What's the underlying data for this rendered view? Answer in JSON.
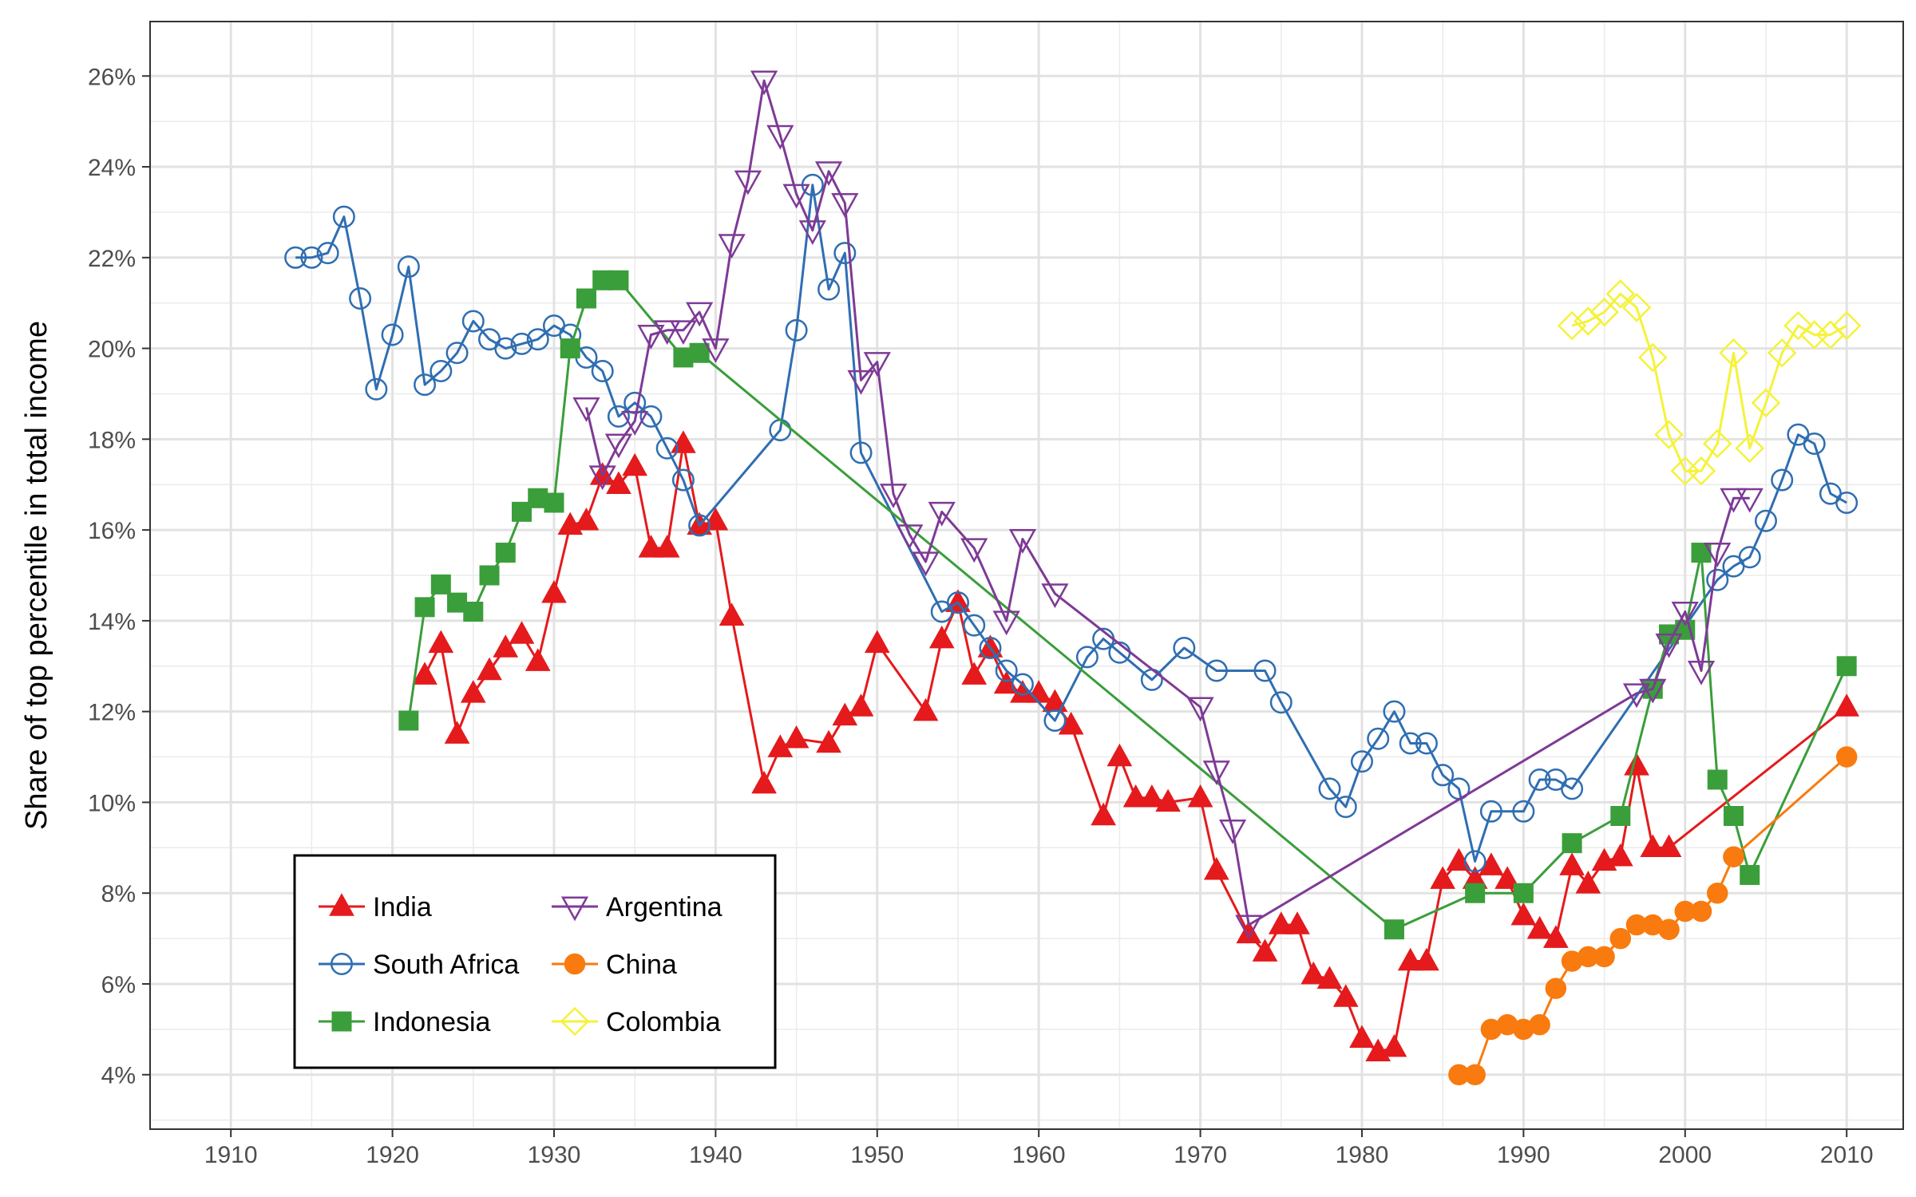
{
  "chart_data": {
    "type": "line",
    "title": "",
    "xlabel": "",
    "ylabel": "Share of top percentile in total income",
    "xlim": [
      1905,
      2013.5
    ],
    "ylim": [
      2.8,
      27.2
    ],
    "x_ticks": [
      1910,
      1920,
      1930,
      1940,
      1950,
      1960,
      1970,
      1980,
      1990,
      2000,
      2010
    ],
    "x_tick_labels": [
      "1910",
      "1920",
      "1930",
      "1940",
      "1950",
      "1960",
      "1970",
      "1980",
      "1990",
      "2000",
      "2010"
    ],
    "y_ticks": [
      4,
      6,
      8,
      10,
      12,
      14,
      16,
      18,
      20,
      22,
      24,
      26
    ],
    "y_tick_labels": [
      "4%",
      "6%",
      "8%",
      "10%",
      "12%",
      "14%",
      "16%",
      "18%",
      "20%",
      "22%",
      "24%",
      "26%"
    ],
    "grid": true,
    "legend_position": "bottom-left",
    "series": [
      {
        "name": "India",
        "color": "#E41A1C",
        "marker": "triangle-up-filled",
        "x": [
          1922,
          1923,
          1924,
          1925,
          1926,
          1927,
          1928,
          1929,
          1930,
          1931,
          1932,
          1933,
          1934,
          1935,
          1936,
          1937,
          1938,
          1939,
          1940,
          1941,
          1943,
          1944,
          1945,
          1947,
          1948,
          1949,
          1950,
          1953,
          1954,
          1955,
          1956,
          1957,
          1958,
          1959,
          1960,
          1961,
          1962,
          1964,
          1965,
          1966,
          1967,
          1968,
          1970,
          1971,
          1973,
          1974,
          1975,
          1976,
          1977,
          1978,
          1979,
          1980,
          1981,
          1982,
          1983,
          1984,
          1985,
          1986,
          1987,
          1988,
          1989,
          1990,
          1991,
          1992,
          1993,
          1994,
          1995,
          1996,
          1997,
          1998,
          1999,
          2010
        ],
        "values": [
          12.8,
          13.5,
          11.5,
          12.4,
          12.9,
          13.4,
          13.7,
          13.1,
          14.6,
          16.1,
          16.2,
          17.2,
          17.0,
          17.4,
          15.6,
          15.6,
          17.9,
          16.1,
          16.2,
          14.1,
          10.4,
          11.2,
          11.4,
          11.3,
          11.9,
          12.1,
          13.5,
          12.0,
          13.6,
          14.4,
          12.8,
          13.4,
          12.6,
          12.4,
          12.4,
          12.2,
          11.7,
          9.7,
          11.0,
          10.1,
          10.1,
          10.0,
          10.1,
          8.5,
          7.1,
          6.7,
          7.3,
          7.3,
          6.2,
          6.1,
          5.7,
          4.8,
          4.5,
          4.6,
          6.5,
          6.5,
          8.3,
          8.7,
          8.3,
          8.6,
          8.3,
          7.5,
          7.2,
          7.0,
          8.6,
          8.2,
          8.7,
          8.8,
          10.8,
          9.0,
          9.0,
          12.1
        ]
      },
      {
        "name": "South Africa",
        "color": "#2F6EB2",
        "marker": "circle-open",
        "x": [
          1914,
          1915,
          1916,
          1917,
          1918,
          1919,
          1920,
          1921,
          1922,
          1923,
          1924,
          1925,
          1926,
          1927,
          1928,
          1929,
          1930,
          1931,
          1932,
          1933,
          1934,
          1935,
          1936,
          1937,
          1938,
          1939,
          1944,
          1945,
          1946,
          1947,
          1948,
          1949,
          1954,
          1955,
          1956,
          1957,
          1958,
          1959,
          1961,
          1963,
          1964,
          1965,
          1967,
          1969,
          1971,
          1974,
          1975,
          1978,
          1979,
          1980,
          1981,
          1982,
          1983,
          1984,
          1985,
          1986,
          1987,
          1988,
          1990,
          1991,
          1992,
          1993,
          2002,
          2003,
          2004,
          2005,
          2006,
          2007,
          2008,
          2009,
          2010
        ],
        "values": [
          22.0,
          22.0,
          22.1,
          22.9,
          21.1,
          19.1,
          20.3,
          21.8,
          19.2,
          19.5,
          19.9,
          20.6,
          20.2,
          20.0,
          20.1,
          20.2,
          20.5,
          20.3,
          19.8,
          19.5,
          18.5,
          18.8,
          18.5,
          17.8,
          17.1,
          16.1,
          18.2,
          20.4,
          23.6,
          21.3,
          22.1,
          17.7,
          14.2,
          14.4,
          13.9,
          13.4,
          12.9,
          12.6,
          11.8,
          13.2,
          13.6,
          13.3,
          12.7,
          13.4,
          12.9,
          12.9,
          12.2,
          10.3,
          9.9,
          10.9,
          11.4,
          12.0,
          11.3,
          11.3,
          10.6,
          10.3,
          8.7,
          9.8,
          9.8,
          10.5,
          10.5,
          10.3,
          14.9,
          15.2,
          15.4,
          16.2,
          17.1,
          18.1,
          17.9,
          16.8,
          16.6
        ]
      },
      {
        "name": "Indonesia",
        "color": "#3A9E3A",
        "marker": "square-filled",
        "x": [
          1921,
          1922,
          1923,
          1924,
          1925,
          1926,
          1927,
          1928,
          1929,
          1930,
          1931,
          1932,
          1933,
          1934,
          1938,
          1939,
          1982,
          1987,
          1990,
          1993,
          1996,
          1998,
          1999,
          2000,
          2001,
          2002,
          2003,
          2004,
          2010
        ],
        "values": [
          11.8,
          14.3,
          14.8,
          14.4,
          14.2,
          15.0,
          15.5,
          16.4,
          16.7,
          16.6,
          20.0,
          21.1,
          21.5,
          21.5,
          19.8,
          19.9,
          7.2,
          8.0,
          8.0,
          9.1,
          9.7,
          12.5,
          13.7,
          13.8,
          15.5,
          10.5,
          9.7,
          8.4,
          13.0
        ]
      },
      {
        "name": "Argentina",
        "color": "#7E3A96",
        "marker": "triangle-down-open",
        "x": [
          1932,
          1933,
          1934,
          1935,
          1936,
          1937,
          1938,
          1939,
          1940,
          1941,
          1942,
          1943,
          1944,
          1945,
          1946,
          1947,
          1948,
          1949,
          1950,
          1951,
          1952,
          1953,
          1954,
          1956,
          1958,
          1959,
          1961,
          1970,
          1971,
          1972,
          1973,
          1997,
          1998,
          1999,
          2000,
          2001,
          2002,
          2003,
          2004
        ],
        "values": [
          18.7,
          17.2,
          17.9,
          18.4,
          20.3,
          20.4,
          20.4,
          20.8,
          20.0,
          22.3,
          23.7,
          25.9,
          24.7,
          23.4,
          22.6,
          23.9,
          23.2,
          19.3,
          19.7,
          16.8,
          15.9,
          15.3,
          16.4,
          15.6,
          14.0,
          15.8,
          14.6,
          12.1,
          10.7,
          9.4,
          7.3,
          12.4,
          12.5,
          13.5,
          14.2,
          12.9,
          15.5,
          16.7,
          16.7
        ]
      },
      {
        "name": "China",
        "color": "#F97A0E",
        "marker": "circle-filled",
        "x": [
          1986,
          1987,
          1988,
          1989,
          1990,
          1991,
          1992,
          1993,
          1994,
          1995,
          1996,
          1997,
          1998,
          1999,
          2000,
          2001,
          2002,
          2003,
          2010
        ],
        "values": [
          4.0,
          4.0,
          5.0,
          5.1,
          5.0,
          5.1,
          5.9,
          6.5,
          6.6,
          6.6,
          7.0,
          7.3,
          7.3,
          7.2,
          7.6,
          7.6,
          8.0,
          8.8,
          11.0
        ]
      },
      {
        "name": "Colombia",
        "color": "#F5F23A",
        "marker": "diamond-open",
        "x": [
          1993,
          1994,
          1995,
          1996,
          1997,
          1998,
          1999,
          2000,
          2001,
          2002,
          2003,
          2004,
          2005,
          2006,
          2007,
          2008,
          2009,
          2010
        ],
        "values": [
          20.5,
          20.6,
          20.8,
          21.2,
          20.9,
          19.8,
          18.1,
          17.3,
          17.3,
          17.9,
          19.9,
          17.8,
          18.8,
          19.9,
          20.5,
          20.3,
          20.3,
          20.5
        ]
      }
    ]
  }
}
